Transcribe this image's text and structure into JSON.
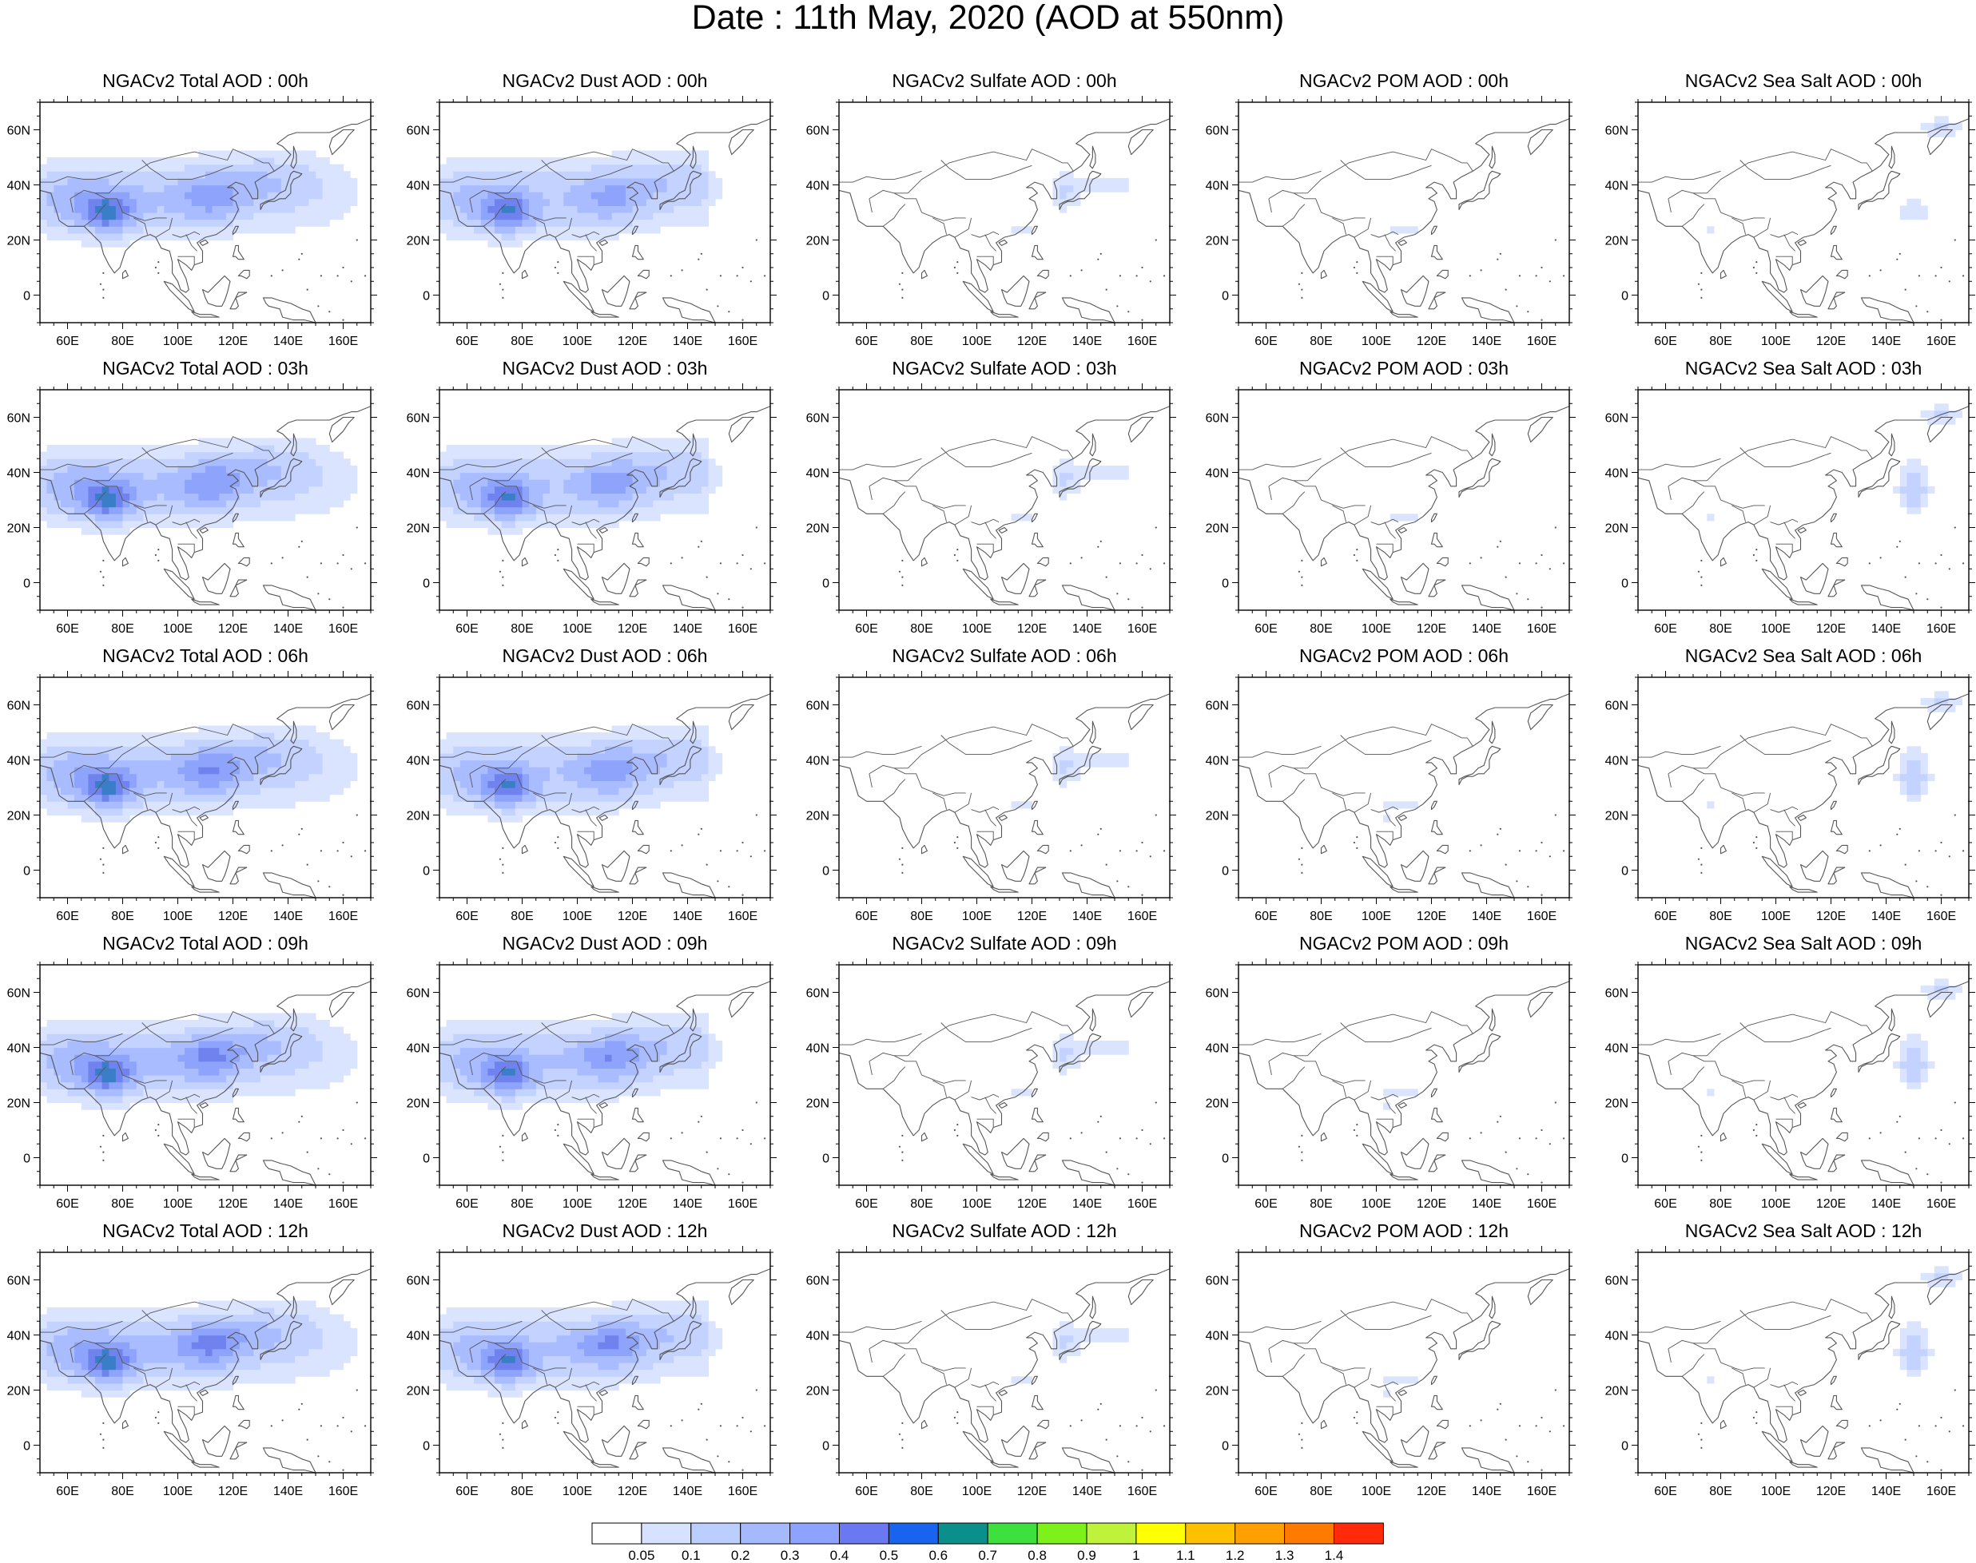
{
  "title": "Date : 11th May, 2020 (AOD at 550nm)",
  "map_axes": {
    "lon_ticks": [
      "60E",
      "80E",
      "100E",
      "120E",
      "140E",
      "160E"
    ],
    "lat_ticks": [
      "60N",
      "40N",
      "20N",
      "0"
    ],
    "lon_range": [
      50,
      170
    ],
    "lat_range": [
      -10,
      70
    ]
  },
  "panel_titles": [
    [
      "NGACv2 Total AOD : 00h",
      "NGACv2 Dust AOD : 00h",
      "NGACv2 Sulfate AOD : 00h",
      "NGACv2 POM AOD : 00h",
      "NGACv2 Sea Salt AOD : 00h"
    ],
    [
      "NGACv2 Total AOD : 03h",
      "NGACv2 Dust AOD : 03h",
      "NGACv2 Sulfate AOD : 03h",
      "NGACv2 POM AOD : 03h",
      "NGACv2 Sea Salt AOD : 03h"
    ],
    [
      "NGACv2 Total AOD : 06h",
      "NGACv2 Dust AOD : 06h",
      "NGACv2 Sulfate AOD : 06h",
      "NGACv2 POM AOD : 06h",
      "NGACv2 Sea Salt AOD : 06h"
    ],
    [
      "NGACv2 Total AOD : 09h",
      "NGACv2 Dust AOD : 09h",
      "NGACv2 Sulfate AOD : 09h",
      "NGACv2 POM AOD : 09h",
      "NGACv2 Sea Salt  AOD : 09h"
    ],
    [
      "NGACv2 Total AOD  : 12h",
      "NGACv2 Dust AOD : 12h",
      "NGACv2 Sulfate AOD : 12h",
      "NGACv2 POM  AOD : 12h",
      "NGACv2 Sea Salt  AOD : 12h"
    ]
  ],
  "colorbar": {
    "labels": [
      "0.05",
      "0.1",
      "0.2",
      "0.3",
      "0.4",
      "0.5",
      "0.6",
      "0.7",
      "0.8",
      "0.9",
      "1",
      "1.1",
      "1.2",
      "1.3",
      "1.4"
    ],
    "colors": [
      "#ffffff",
      "#d6e2ff",
      "#bccdff",
      "#a5b9ff",
      "#8ea2ff",
      "#6a78f2",
      "#1864ee",
      "#0a8f8a",
      "#3ee03e",
      "#7ef01a",
      "#bff23a",
      "#ffff00",
      "#ffc000",
      "#ffa000",
      "#ff7a00",
      "#ff2a0a"
    ]
  },
  "colors": {
    "coast": "#555555",
    "axis": "#000000"
  }
}
